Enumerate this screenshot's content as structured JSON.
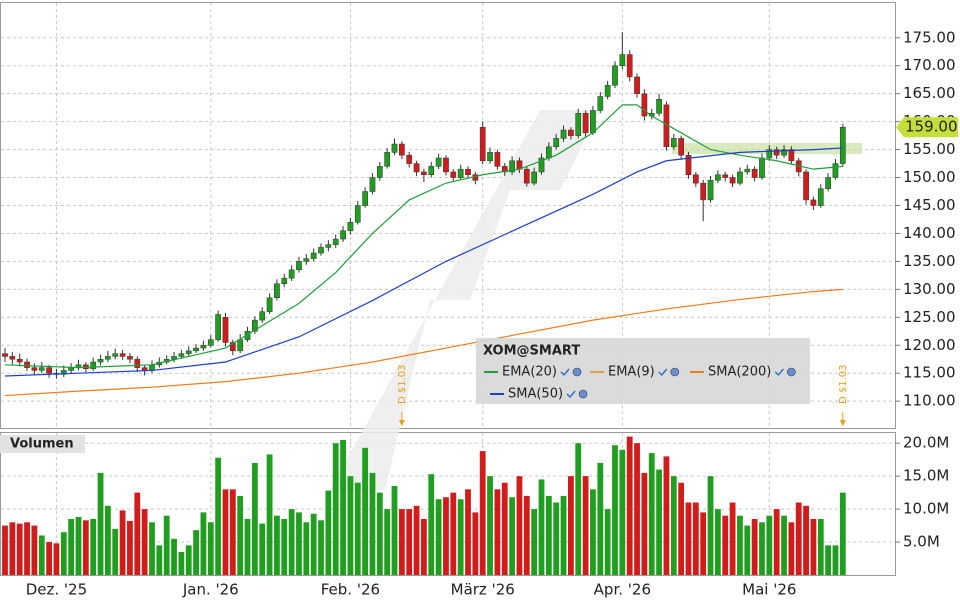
{
  "chart_data": [
    {
      "type": "candlestick",
      "up_color": "#1f9e1f",
      "down_color": "#d21c1c",
      "ylim": [
        105.2,
        181.4
      ],
      "yticks": [
        {
          "value": 110,
          "label": "110.00"
        },
        {
          "value": 115,
          "label": "115.00"
        },
        {
          "value": 120,
          "label": "120.00"
        },
        {
          "value": 125,
          "label": "125.00"
        },
        {
          "value": 130,
          "label": "130.00"
        },
        {
          "value": 135,
          "label": "135.00"
        },
        {
          "value": 140,
          "label": "140.00"
        },
        {
          "value": 145,
          "label": "145.00"
        },
        {
          "value": 150,
          "label": "150.00"
        },
        {
          "value": 155,
          "label": "155.00"
        },
        {
          "value": 160,
          "label": "160.00"
        },
        {
          "value": 165,
          "label": "165.00"
        },
        {
          "value": 170,
          "label": "170.00"
        },
        {
          "value": 175,
          "label": "175.00"
        }
      ],
      "grid": true,
      "last_price": {
        "value": 159,
        "label": "159.00"
      },
      "legend_title": "XOM@SMART",
      "ohlc": [
        [
          118.5,
          119.5,
          117,
          118
        ],
        [
          118,
          118.8,
          116.5,
          117.5
        ],
        [
          117.5,
          118.5,
          116.2,
          117
        ],
        [
          117,
          117.6,
          115.4,
          116
        ],
        [
          116,
          116.8,
          114.8,
          115.5
        ],
        [
          115.5,
          117,
          115,
          116
        ],
        [
          116,
          116.5,
          114.2,
          115
        ],
        [
          115,
          115.8,
          114,
          114.8
        ],
        [
          114.8,
          116.4,
          114.3,
          115.5
        ],
        [
          115.5,
          116.8,
          115,
          116
        ],
        [
          116,
          117.4,
          115.5,
          116.5
        ],
        [
          116.5,
          117,
          115.2,
          115.8
        ],
        [
          115.8,
          117.8,
          115.4,
          117
        ],
        [
          117,
          118.3,
          116.4,
          117.5
        ],
        [
          117.5,
          119,
          117,
          118
        ],
        [
          118,
          119.4,
          117.5,
          118.5
        ],
        [
          118.5,
          119.2,
          117.4,
          118
        ],
        [
          118,
          118.6,
          116.8,
          117.5
        ],
        [
          117.5,
          118,
          115.2,
          116
        ],
        [
          116,
          116.5,
          114.6,
          115.5
        ],
        [
          115.5,
          117.3,
          115,
          116.5
        ],
        [
          116.5,
          117.8,
          116,
          117
        ],
        [
          117,
          118.2,
          116.6,
          117.5
        ],
        [
          117.5,
          118.8,
          117,
          118
        ],
        [
          118,
          119.2,
          117.6,
          118.5
        ],
        [
          118.5,
          119.8,
          118,
          119
        ],
        [
          119,
          120.2,
          118.6,
          119.5
        ],
        [
          119.5,
          120.8,
          119,
          120
        ],
        [
          120,
          121.8,
          119.6,
          121
        ],
        [
          121,
          126.2,
          120.6,
          125.5
        ],
        [
          125,
          125.8,
          119.8,
          120.5
        ],
        [
          120.5,
          121,
          118.2,
          119
        ],
        [
          119,
          122,
          118.6,
          121
        ],
        [
          121,
          123.3,
          120.6,
          122.5
        ],
        [
          122.5,
          125.2,
          122,
          124.5
        ],
        [
          124.5,
          126.8,
          124,
          126
        ],
        [
          126,
          129.3,
          125.6,
          128.5
        ],
        [
          128.5,
          131.8,
          128,
          131
        ],
        [
          131,
          132.8,
          130.4,
          132
        ],
        [
          132,
          134.3,
          131.5,
          133.5
        ],
        [
          133.5,
          135.8,
          133,
          135
        ],
        [
          135,
          136.3,
          134.4,
          135.5
        ],
        [
          135.5,
          137.3,
          135,
          136.5
        ],
        [
          136.5,
          138.2,
          136,
          137.5
        ],
        [
          137.5,
          138.8,
          136.8,
          138
        ],
        [
          138,
          139.8,
          137.4,
          139
        ],
        [
          139,
          141.3,
          138.5,
          140.5
        ],
        [
          140.5,
          142.8,
          139.8,
          142
        ],
        [
          142,
          145.8,
          141.6,
          145
        ],
        [
          145,
          148.3,
          144.6,
          147.5
        ],
        [
          147.5,
          150.8,
          147,
          150
        ],
        [
          150,
          152.8,
          149.4,
          152
        ],
        [
          152,
          155.3,
          151.6,
          154.5
        ],
        [
          154.5,
          157,
          154,
          156
        ],
        [
          156,
          156.5,
          153.3,
          154
        ],
        [
          154,
          154.6,
          151.8,
          152.5
        ],
        [
          152.5,
          153,
          150.3,
          151
        ],
        [
          151,
          151.6,
          149.2,
          150.5
        ],
        [
          150.5,
          152.8,
          150,
          152
        ],
        [
          152,
          154.3,
          151.5,
          153.5
        ],
        [
          153.5,
          154,
          150.4,
          151
        ],
        [
          151,
          151.5,
          149.4,
          150
        ],
        [
          150,
          152.3,
          149.6,
          151.5
        ],
        [
          151.5,
          152,
          149.8,
          150.5
        ],
        [
          150.5,
          151,
          148.8,
          149.5
        ],
        [
          159,
          160,
          152.4,
          153
        ],
        [
          153,
          155.4,
          152.5,
          154.5
        ],
        [
          154.5,
          155,
          151.4,
          152
        ],
        [
          152,
          152.6,
          150.3,
          151
        ],
        [
          151,
          153.8,
          150.5,
          153
        ],
        [
          153,
          153.6,
          150.8,
          151.5
        ],
        [
          151.5,
          152,
          148.4,
          149
        ],
        [
          149,
          151.8,
          148.6,
          151
        ],
        [
          151,
          154.3,
          150.5,
          153.5
        ],
        [
          153.5,
          156.3,
          153,
          155.5
        ],
        [
          155.5,
          157.8,
          155,
          157
        ],
        [
          157,
          159.3,
          156.4,
          158.5
        ],
        [
          158.5,
          159,
          156.8,
          157.5
        ],
        [
          157.5,
          162.3,
          157,
          161.5
        ],
        [
          161.5,
          162,
          157.3,
          158
        ],
        [
          158,
          162.8,
          157.6,
          162
        ],
        [
          162,
          165.3,
          161.5,
          164.5
        ],
        [
          164.5,
          167.3,
          164,
          166.5
        ],
        [
          166.5,
          170.8,
          166,
          170
        ],
        [
          170,
          176,
          169.4,
          172
        ],
        [
          172,
          172.8,
          167.2,
          168
        ],
        [
          168,
          168.6,
          164.3,
          165
        ],
        [
          165,
          165.8,
          160.2,
          161
        ],
        [
          161,
          162.3,
          160.4,
          161.5
        ],
        [
          161.5,
          165,
          161,
          164
        ],
        [
          163,
          163.6,
          154.8,
          155.5
        ],
        [
          155.5,
          157.8,
          155,
          157
        ],
        [
          157,
          157.5,
          153.2,
          154
        ],
        [
          154,
          154.6,
          149.8,
          150.5
        ],
        [
          150.5,
          151,
          148.3,
          149
        ],
        [
          149,
          149.6,
          142.2,
          146
        ],
        [
          146,
          150.3,
          145.5,
          149.5
        ],
        [
          149.5,
          151.3,
          149,
          150.5
        ],
        [
          150.5,
          151,
          149.3,
          150
        ],
        [
          150,
          150.5,
          148.3,
          149
        ],
        [
          149,
          151.8,
          148.6,
          151
        ],
        [
          151,
          152.3,
          150.5,
          151.5
        ],
        [
          151.5,
          152,
          149.3,
          150
        ],
        [
          150,
          154.3,
          149.6,
          153.5
        ],
        [
          153.5,
          155.8,
          153,
          155
        ],
        [
          155,
          155.5,
          153.3,
          154
        ],
        [
          154,
          155.8,
          153.5,
          155
        ],
        [
          155,
          155.6,
          152.3,
          153
        ],
        [
          153,
          153.5,
          150.2,
          151
        ],
        [
          151,
          151.5,
          145.2,
          146
        ],
        [
          146,
          146.6,
          144.2,
          145
        ],
        [
          145,
          148.8,
          144.6,
          148
        ],
        [
          148,
          150.8,
          147.5,
          150
        ],
        [
          150,
          153.3,
          149.6,
          152.5
        ],
        [
          152.5,
          159.6,
          152,
          159
        ]
      ],
      "series": [
        {
          "name": "EMA(20)",
          "color": "#1f9e3a",
          "x": [
            0,
            10,
            20,
            30,
            40,
            45,
            50,
            55,
            60,
            65,
            70,
            75,
            80,
            84,
            86,
            88,
            92,
            96,
            100,
            105,
            110,
            114
          ],
          "values": [
            116.5,
            116,
            116.5,
            119.5,
            127.5,
            133,
            140,
            146,
            149,
            150.5,
            151.5,
            154,
            158,
            163,
            163,
            161,
            158,
            155,
            154,
            153,
            151.5,
            152
          ]
        },
        {
          "name": "EMA(9)",
          "color": "#e0a050",
          "x": [],
          "values": []
        },
        {
          "name": "SMA(200)",
          "color": "#f07a1a",
          "x": [
            0,
            10,
            20,
            30,
            40,
            50,
            60,
            70,
            80,
            90,
            100,
            110,
            114
          ],
          "values": [
            111,
            111.8,
            112.5,
            113.5,
            115,
            117,
            119.5,
            122,
            124.5,
            126.5,
            128.2,
            129.6,
            130
          ]
        },
        {
          "name": "SMA(50)",
          "color": "#1c3fc4",
          "x": [
            0,
            10,
            20,
            30,
            40,
            50,
            60,
            70,
            80,
            86,
            90,
            100,
            110,
            114
          ],
          "values": [
            114.5,
            115,
            115.5,
            117,
            121.5,
            128,
            135,
            141,
            147,
            151,
            153,
            154.5,
            155,
            155.3
          ]
        }
      ],
      "annotations": [
        {
          "text": "D $1.03",
          "x": 54
        },
        {
          "text": "D $1.03",
          "x": 114
        }
      ]
    },
    {
      "type": "bar",
      "title": "Volumen",
      "ylim": [
        0,
        21.7
      ],
      "yticks": [
        {
          "value": 5,
          "label": "5.0M"
        },
        {
          "value": 10,
          "label": "10.0M"
        },
        {
          "value": 15,
          "label": "15.0M"
        },
        {
          "value": 20,
          "label": "20.0M"
        }
      ],
      "xlim": [
        -0.68,
        121.1
      ],
      "xticks": [
        {
          "value": 7,
          "label": "Dez. '25"
        },
        {
          "value": 28,
          "label": "Jan. '26"
        },
        {
          "value": 47,
          "label": "Feb. '26"
        },
        {
          "value": 65,
          "label": "März '26"
        },
        {
          "value": 84,
          "label": "Apr. '26"
        },
        {
          "value": 104,
          "label": "Mai '26"
        }
      ],
      "values": [
        7.5,
        8,
        7.8,
        8,
        7.5,
        6,
        5,
        4.8,
        6.5,
        8.5,
        8.8,
        8.3,
        8.5,
        15.5,
        10.5,
        7,
        9.8,
        8.2,
        12.5,
        10,
        8,
        4.5,
        9,
        5.5,
        3.5,
        4.5,
        6.8,
        9.5,
        8,
        17.8,
        13,
        13,
        12,
        8.5,
        17,
        7.8,
        18.3,
        9,
        8.5,
        10,
        9.5,
        8,
        9.3,
        8.3,
        12.8,
        20,
        20.5,
        15,
        14,
        19.3,
        15.5,
        12.5,
        10,
        13.5,
        10,
        10,
        10.5,
        8.5,
        15.3,
        11.5,
        11.8,
        12.5,
        11.5,
        13,
        9.5,
        18.8,
        15,
        13,
        14,
        11.8,
        15,
        12,
        10,
        14.5,
        12,
        11,
        12,
        15,
        20,
        15,
        13,
        17,
        10,
        19.7,
        19,
        21,
        20,
        15.5,
        18.5,
        16,
        18,
        15,
        14,
        11,
        11,
        9.5,
        15,
        10,
        9,
        11,
        9,
        7.5,
        8.5,
        8,
        9,
        10,
        9,
        8,
        11,
        10.5,
        8.5,
        8.5,
        4.5,
        4.5,
        12.5
      ]
    }
  ]
}
